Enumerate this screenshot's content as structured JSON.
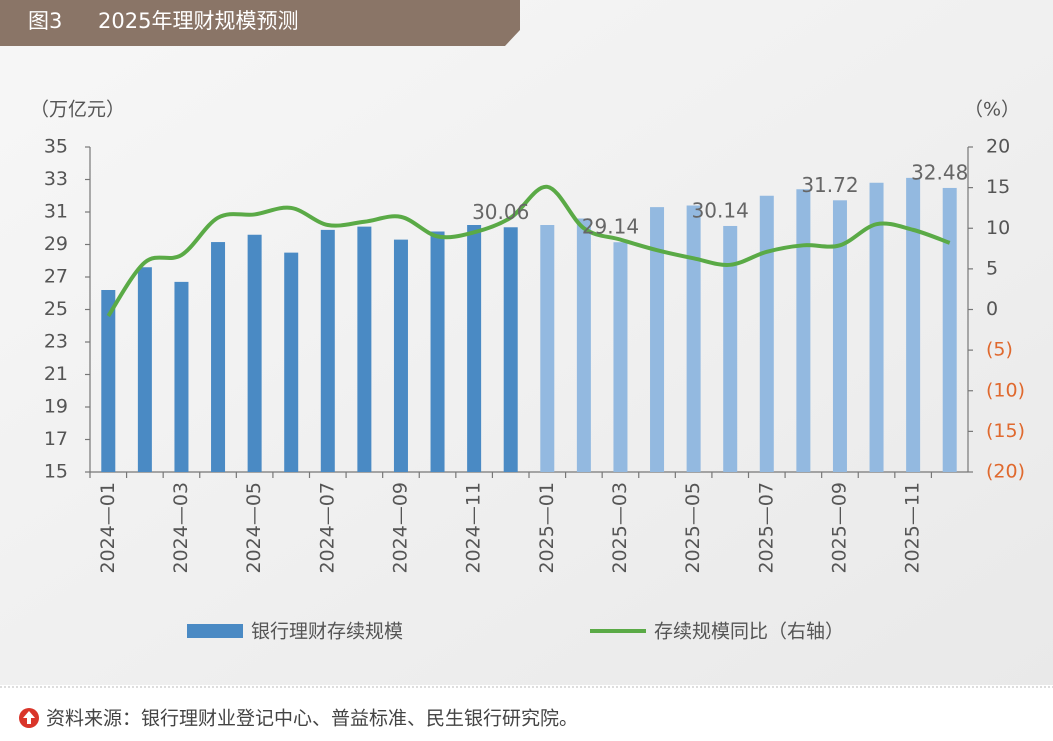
{
  "chart_data": {
    "type": "bar_line",
    "figure_label": "图3",
    "title": "2025年理财规模预测",
    "y_axis_label": "（万亿元）",
    "y2_axis_label": "（%）",
    "categories": [
      "2024—01",
      null,
      "2024—03",
      null,
      "2024—05",
      null,
      "2024—07",
      null,
      "2024—09",
      null,
      "2024—11",
      null,
      "2025—01",
      null,
      "2025—03",
      null,
      "2025—05",
      null,
      "2025—07",
      null,
      "2025—09",
      null,
      "2025—11",
      null
    ],
    "series": [
      {
        "name": "银行理财存续规模",
        "type": "bar",
        "color": "#4a8ac4",
        "point_colors": [
          "#4a8ac4",
          "#4a8ac4",
          "#4a8ac4",
          "#4a8ac4",
          "#4a8ac4",
          "#4a8ac4",
          "#4a8ac4",
          "#4a8ac4",
          "#4a8ac4",
          "#4a8ac4",
          "#4a8ac4",
          "#4a8ac4",
          "#93b9e0",
          "#93b9e0",
          "#93b9e0",
          "#93b9e0",
          "#93b9e0",
          "#93b9e0",
          "#93b9e0",
          "#93b9e0",
          "#93b9e0",
          "#93b9e0",
          "#93b9e0",
          "#93b9e0"
        ],
        "values": [
          26.2,
          27.6,
          26.7,
          29.15,
          29.6,
          28.5,
          29.9,
          30.1,
          29.3,
          29.8,
          30.2,
          30.06,
          30.2,
          30.6,
          29.14,
          31.3,
          31.4,
          30.14,
          32.0,
          32.4,
          31.72,
          32.8,
          33.1,
          32.48
        ],
        "value_labels": [
          null,
          null,
          null,
          null,
          null,
          null,
          null,
          null,
          null,
          null,
          null,
          "30.06",
          null,
          null,
          "29.14",
          null,
          null,
          "30.14",
          null,
          null,
          "31.72",
          null,
          null,
          "32.48"
        ]
      },
      {
        "name": "存续规模同比（右轴）",
        "type": "line",
        "axis": "y2",
        "color": "#5aaa46",
        "values": [
          -0.8,
          5.8,
          6.7,
          11.3,
          11.7,
          12.5,
          10.4,
          10.8,
          11.4,
          9.0,
          9.5,
          11.3,
          15.1,
          10.0,
          8.6,
          7.3,
          6.3,
          5.5,
          7.1,
          7.9,
          7.9,
          10.5,
          9.8,
          8.2
        ]
      }
    ],
    "ylim": [
      15,
      35
    ],
    "yticks": [
      15,
      17,
      19,
      21,
      23,
      25,
      27,
      29,
      31,
      33,
      35
    ],
    "y2lim": [
      -20,
      20
    ],
    "y2ticks": [
      {
        "value": -20,
        "label": "(20)"
      },
      {
        "value": -15,
        "label": "(15)"
      },
      {
        "value": -10,
        "label": "(10)"
      },
      {
        "value": -5,
        "label": "(5)"
      },
      0,
      5,
      10,
      15,
      20
    ],
    "negative_tick_color": "#e0692e",
    "grid": false
  },
  "source": "资料来源：银行理财业登记中心、普益标准、民生银行研究院。"
}
